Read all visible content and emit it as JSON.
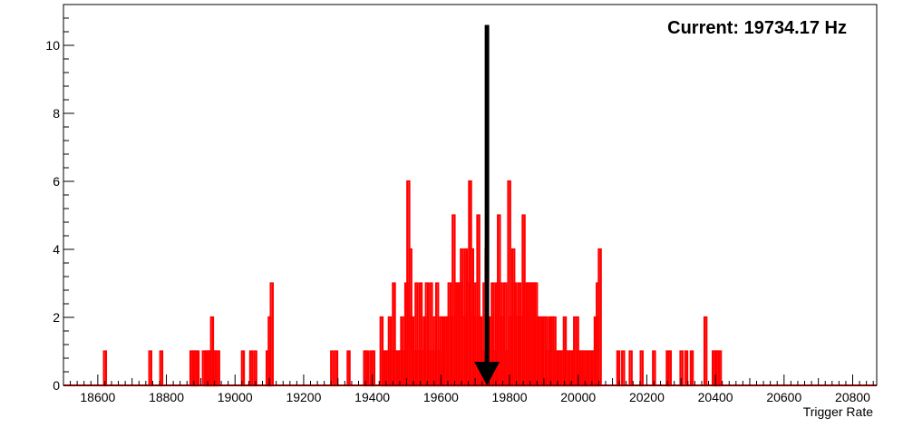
{
  "chart_data": {
    "type": "histogram",
    "title": "",
    "xlabel": "Trigger Rate",
    "ylabel": "",
    "xlim": [
      18500,
      20870
    ],
    "ylim": [
      0,
      11.2
    ],
    "x_ticks": [
      18600,
      18800,
      19000,
      19200,
      19400,
      19600,
      19800,
      20000,
      20200,
      20400,
      20600,
      20800
    ],
    "x_tick_labels": [
      "18600",
      "18800",
      "19000",
      "19200",
      "19400",
      "19600",
      "19800",
      "20000",
      "20200",
      "20400",
      "20600",
      "20800"
    ],
    "y_ticks": [
      0,
      2,
      4,
      6,
      8,
      10
    ],
    "y_tick_labels": [
      "0",
      "2",
      "4",
      "6",
      "8",
      "10"
    ],
    "grid": false,
    "bin_width": 6,
    "series": [
      {
        "name": "Trigger rate counts",
        "color": "#ff0000",
        "bins": [
          [
            18618,
            1
          ],
          [
            18750,
            1
          ],
          [
            18782,
            1
          ],
          [
            18870,
            1
          ],
          [
            18876,
            1
          ],
          [
            18882,
            1
          ],
          [
            18888,
            1
          ],
          [
            18906,
            1
          ],
          [
            18912,
            1
          ],
          [
            18918,
            1
          ],
          [
            18924,
            1
          ],
          [
            18930,
            2
          ],
          [
            18936,
            1
          ],
          [
            18942,
            1
          ],
          [
            18948,
            1
          ],
          [
            19020,
            1
          ],
          [
            19044,
            1
          ],
          [
            19056,
            1
          ],
          [
            19092,
            1
          ],
          [
            19098,
            2
          ],
          [
            19104,
            3
          ],
          [
            19280,
            1
          ],
          [
            19292,
            1
          ],
          [
            19328,
            1
          ],
          [
            19376,
            1
          ],
          [
            19382,
            1
          ],
          [
            19394,
            1
          ],
          [
            19400,
            1
          ],
          [
            19424,
            2
          ],
          [
            19430,
            1
          ],
          [
            19436,
            1
          ],
          [
            19442,
            1
          ],
          [
            19448,
            2
          ],
          [
            19454,
            1
          ],
          [
            19460,
            3
          ],
          [
            19466,
            1
          ],
          [
            19472,
            1
          ],
          [
            19478,
            1
          ],
          [
            19484,
            2
          ],
          [
            19490,
            1
          ],
          [
            19496,
            3
          ],
          [
            19502,
            6
          ],
          [
            19508,
            4
          ],
          [
            19514,
            2
          ],
          [
            19520,
            1
          ],
          [
            19526,
            3
          ],
          [
            19532,
            1
          ],
          [
            19538,
            3
          ],
          [
            19544,
            1
          ],
          [
            19550,
            2
          ],
          [
            19556,
            3
          ],
          [
            19562,
            1
          ],
          [
            19568,
            3
          ],
          [
            19574,
            1
          ],
          [
            19580,
            2
          ],
          [
            19586,
            3
          ],
          [
            19592,
            1
          ],
          [
            19598,
            2
          ],
          [
            19604,
            2
          ],
          [
            19610,
            2
          ],
          [
            19616,
            2
          ],
          [
            19622,
            3
          ],
          [
            19628,
            2
          ],
          [
            19634,
            5
          ],
          [
            19640,
            3
          ],
          [
            19646,
            3
          ],
          [
            19652,
            3
          ],
          [
            19658,
            4
          ],
          [
            19664,
            2
          ],
          [
            19670,
            4
          ],
          [
            19676,
            3
          ],
          [
            19682,
            6
          ],
          [
            19688,
            4
          ],
          [
            19694,
            2
          ],
          [
            19700,
            3
          ],
          [
            19706,
            5
          ],
          [
            19712,
            2
          ],
          [
            19718,
            1
          ],
          [
            19724,
            3
          ],
          [
            19730,
            4
          ],
          [
            19736,
            1
          ],
          [
            19742,
            2
          ],
          [
            19748,
            3
          ],
          [
            19754,
            1
          ],
          [
            19760,
            3
          ],
          [
            19766,
            5
          ],
          [
            19772,
            3
          ],
          [
            19778,
            2
          ],
          [
            19784,
            3
          ],
          [
            19790,
            1
          ],
          [
            19796,
            6
          ],
          [
            19802,
            2
          ],
          [
            19808,
            4
          ],
          [
            19814,
            3
          ],
          [
            19820,
            2
          ],
          [
            19826,
            3
          ],
          [
            19832,
            2
          ],
          [
            19838,
            5
          ],
          [
            19844,
            3
          ],
          [
            19850,
            3
          ],
          [
            19856,
            3
          ],
          [
            19862,
            3
          ],
          [
            19868,
            3
          ],
          [
            19874,
            3
          ],
          [
            19880,
            2
          ],
          [
            19886,
            2
          ],
          [
            19892,
            2
          ],
          [
            19898,
            2
          ],
          [
            19904,
            2
          ],
          [
            19910,
            1
          ],
          [
            19916,
            2
          ],
          [
            19922,
            2
          ],
          [
            19928,
            2
          ],
          [
            19934,
            1
          ],
          [
            19940,
            1
          ],
          [
            19946,
            1
          ],
          [
            19952,
            1
          ],
          [
            19958,
            2
          ],
          [
            19964,
            1
          ],
          [
            19970,
            1
          ],
          [
            19976,
            1
          ],
          [
            19982,
            1
          ],
          [
            19988,
            2
          ],
          [
            19994,
            2
          ],
          [
            20000,
            1
          ],
          [
            20006,
            1
          ],
          [
            20012,
            1
          ],
          [
            20018,
            1
          ],
          [
            20024,
            1
          ],
          [
            20030,
            1
          ],
          [
            20036,
            1
          ],
          [
            20042,
            1
          ],
          [
            20048,
            2
          ],
          [
            20054,
            3
          ],
          [
            20060,
            4
          ],
          [
            20114,
            1
          ],
          [
            20128,
            1
          ],
          [
            20150,
            1
          ],
          [
            20182,
            1
          ],
          [
            20218,
            1
          ],
          [
            20258,
            1
          ],
          [
            20264,
            1
          ],
          [
            20298,
            1
          ],
          [
            20312,
            1
          ],
          [
            20328,
            1
          ],
          [
            20368,
            2
          ],
          [
            20392,
            1
          ],
          [
            20398,
            1
          ],
          [
            20404,
            1
          ],
          [
            20410,
            1
          ]
        ]
      }
    ],
    "annotations": [
      {
        "type": "text",
        "text": "Current: 19734.17 Hz",
        "position": "top-right"
      },
      {
        "type": "arrow",
        "x": 19734.17,
        "y_start": 10.6,
        "y_end": 0,
        "color": "#000000"
      }
    ]
  }
}
